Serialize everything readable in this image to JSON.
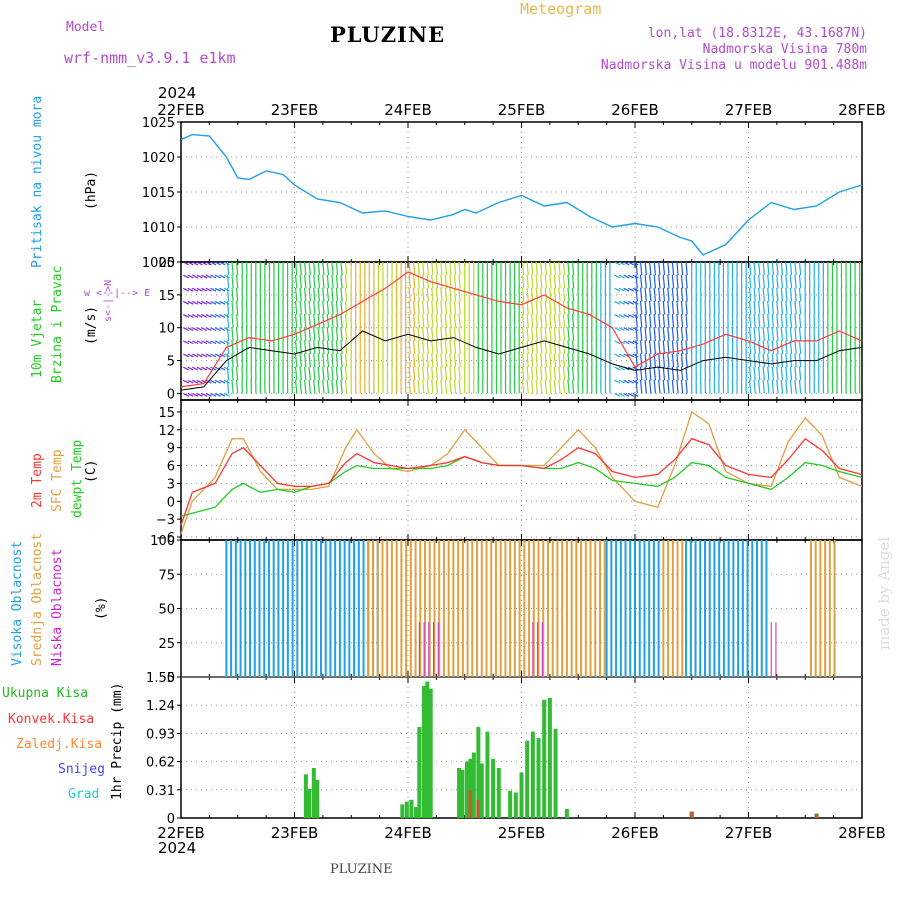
{
  "header": {
    "model_label": "Model",
    "model_name": "wrf-nmm_v3.9.1  e1km",
    "title": "PLUZINE",
    "meteogram": "Meteogram",
    "lonlat": "lon,lat (18.8312E, 43.1687N)",
    "elevation": "Nadmorska Visina 780m",
    "model_elevation": "Nadmorska Visina u modelu 901.488m"
  },
  "footer": {
    "station": "PLUZINE",
    "made_by": "made by Angel"
  },
  "colors": {
    "pressure": "#1ea0e6",
    "wind_speed": "#000000",
    "gust": "#ff3b3b",
    "temp2m": "#ff3333",
    "sfc_temp": "#e0a040",
    "dewpt": "#22cc22",
    "high_cloud": "#1ea0e6",
    "mid_cloud": "#e0a040",
    "low_cloud": "#cc22cc",
    "total_precip": "#33bb33",
    "conv_precip": "#ff3333",
    "frozen": "#ff8833",
    "snow": "#4444ff",
    "graupel": "#22cccc"
  },
  "axis": {
    "year": "2024",
    "dates": [
      "22FEB",
      "23FEB",
      "24FEB",
      "25FEB",
      "26FEB",
      "27FEB",
      "28FEB"
    ]
  },
  "panels": {
    "pressure": {
      "label": "Pritisak na nivou mora",
      "unit": "(hPa)"
    },
    "wind": {
      "label1": "10m Vjetar",
      "label2": "Brzina i Pravac",
      "unit": "(m/s)",
      "compass": "w <--|--> E",
      "compass2": "s<-|->N"
    },
    "temp": {
      "l1": "2m Temp",
      "l2": "SFC Temp",
      "l3": "dewpt Temp",
      "unit": "(C)"
    },
    "cloud": {
      "l1": "Visoka Oblacnost",
      "l2": "Srednja Oblacnost",
      "l3": "Niska Oblacnost",
      "unit": "(%)"
    },
    "precip": {
      "unit": "1hr Precip (mm)",
      "legend": [
        "Ukupna Kisa",
        "Konvek.Kisa",
        "Zaledj.Kisa",
        "Snijeg",
        "Grad"
      ]
    }
  },
  "chart_data": [
    {
      "type": "line",
      "title": "",
      "ylabel": "Pritisak na nivou mora (hPa)",
      "ylim": [
        1005,
        1025
      ],
      "yticks": [
        1005,
        1010,
        1015,
        1020,
        1025
      ],
      "x_days": [
        0,
        0.1,
        0.25,
        0.4,
        0.5,
        0.6,
        0.75,
        0.9,
        1.0,
        1.2,
        1.4,
        1.6,
        1.8,
        2.0,
        2.2,
        2.4,
        2.5,
        2.6,
        2.8,
        3.0,
        3.2,
        3.4,
        3.6,
        3.8,
        4.0,
        4.2,
        4.4,
        4.5,
        4.6,
        4.8,
        5.0,
        5.2,
        5.4,
        5.6,
        5.8,
        6.0
      ],
      "series": [
        {
          "name": "",
          "values": [
            1022.5,
            1023.2,
            1023.0,
            1020.0,
            1017.0,
            1016.8,
            1018.0,
            1017.5,
            1016.0,
            1014.0,
            1013.5,
            1012.0,
            1012.3,
            1011.5,
            1011.0,
            1011.8,
            1012.5,
            1012.0,
            1013.5,
            1014.5,
            1013.0,
            1013.5,
            1011.5,
            1010.0,
            1010.5,
            1010.0,
            1008.5,
            1008.0,
            1006.0,
            1007.5,
            1011.0,
            1013.5,
            1012.5,
            1013.0,
            1015.0,
            1016.0
          ]
        }
      ]
    },
    {
      "type": "line",
      "title": "",
      "ylabel": "10m Vjetar Brzina i Pravac (m/s)",
      "ylim": [
        -1,
        20
      ],
      "yticks": [
        0,
        5,
        10,
        15,
        20
      ],
      "x_days": [
        0,
        0.2,
        0.4,
        0.6,
        0.8,
        1.0,
        1.2,
        1.4,
        1.6,
        1.8,
        2.0,
        2.2,
        2.4,
        2.6,
        2.8,
        3.0,
        3.2,
        3.4,
        3.6,
        3.8,
        4.0,
        4.2,
        4.4,
        4.6,
        4.8,
        5.0,
        5.2,
        5.4,
        5.6,
        5.8,
        6.0
      ],
      "series": [
        {
          "name": "",
          "values": [
            0.5,
            1.0,
            5.0,
            7.0,
            6.5,
            6.0,
            7.0,
            6.5,
            9.5,
            8.0,
            9.0,
            8.0,
            8.5,
            7.0,
            6.0,
            7.0,
            8.0,
            7.0,
            6.0,
            4.5,
            3.5,
            4.0,
            3.5,
            5.0,
            5.5,
            5.0,
            4.5,
            5.0,
            5.0,
            6.5,
            7.0
          ]
        },
        {
          "name": "",
          "values": [
            1.0,
            1.5,
            7.0,
            8.5,
            8.0,
            9.0,
            10.5,
            12.0,
            14.0,
            16.0,
            18.5,
            17.0,
            16.0,
            15.0,
            14.0,
            13.5,
            15.0,
            13.0,
            12.0,
            10.0,
            4.0,
            6.0,
            6.5,
            7.5,
            9.0,
            8.0,
            6.5,
            8.0,
            8.0,
            9.5,
            8.0
          ]
        }
      ],
      "barbs_note": "wind direction arrows colored by speed"
    },
    {
      "type": "line",
      "title": "",
      "ylabel": "(C)",
      "ylim": [
        -6.5,
        17
      ],
      "yticks": [
        -6,
        -3,
        0,
        3,
        6,
        9,
        12,
        15
      ],
      "x_days": [
        0,
        0.1,
        0.3,
        0.45,
        0.55,
        0.7,
        0.85,
        1.0,
        1.15,
        1.3,
        1.45,
        1.55,
        1.7,
        1.85,
        2.0,
        2.2,
        2.35,
        2.5,
        2.65,
        2.8,
        3.0,
        3.2,
        3.35,
        3.5,
        3.65,
        3.8,
        4.0,
        4.2,
        4.35,
        4.5,
        4.65,
        4.8,
        5.0,
        5.2,
        5.35,
        5.5,
        5.65,
        5.8,
        6.0
      ],
      "series": [
        {
          "name": "2m Temp",
          "values": [
            -4,
            1.5,
            3,
            8,
            9,
            6,
            3,
            2.5,
            2.5,
            3,
            6.5,
            8,
            6.5,
            6,
            5.5,
            6,
            6.5,
            7.5,
            6.5,
            6,
            6,
            5.5,
            7,
            9,
            8,
            5,
            4,
            4.5,
            7,
            10.5,
            9.5,
            6,
            4.5,
            4,
            7,
            10.5,
            8.5,
            5.5,
            4.5
          ]
        },
        {
          "name": "SFC Temp",
          "values": [
            -5.5,
            0,
            4,
            10.5,
            10.5,
            5,
            2,
            2,
            2,
            2.5,
            9,
            12,
            8,
            5.5,
            5,
            6,
            8,
            12,
            9,
            6,
            6,
            6,
            9,
            12,
            9,
            4,
            0,
            -1,
            6,
            15,
            13,
            5,
            3,
            2.5,
            10,
            14,
            11,
            4,
            2.5
          ]
        },
        {
          "name": "dewpt Temp",
          "values": [
            -2.5,
            -2,
            -1,
            2,
            3,
            1.5,
            2,
            1.5,
            2.5,
            3,
            5,
            6,
            5.5,
            5.5,
            5.5,
            5.5,
            6,
            7.5,
            6.5,
            6,
            6,
            5.5,
            5.5,
            6.5,
            5.5,
            3.5,
            3,
            2.5,
            4,
            6.5,
            6,
            4,
            3,
            2,
            4,
            6.5,
            6,
            5,
            4
          ]
        }
      ]
    },
    {
      "type": "bar",
      "title": "",
      "ylabel": "(%)",
      "ylim": [
        0,
        100
      ],
      "yticks": [
        0,
        25,
        50,
        75,
        100
      ],
      "series": [
        {
          "name": "Visoka Oblacnost",
          "segments_days": [
            [
              0.4,
              1.75
            ],
            [
              3.75,
              4.25
            ],
            [
              4.45,
              5.2
            ]
          ],
          "value": 100
        },
        {
          "name": "Srednja Oblacnost",
          "segments_days": [
            [
              1.65,
              3.75
            ],
            [
              4.25,
              4.45
            ],
            [
              5.55,
              5.8
            ]
          ],
          "value": 100
        },
        {
          "name": "Niska Oblacnost",
          "segments_days": [
            [
              2.1,
              2.3
            ],
            [
              3.1,
              3.2
            ],
            [
              5.2,
              5.25
            ]
          ],
          "value": 40
        }
      ]
    },
    {
      "type": "bar",
      "title": "",
      "ylabel": "1hr Precip (mm)",
      "ylim": [
        0,
        1.55
      ],
      "yticks": [
        0,
        0.31,
        0.62,
        0.93,
        1.24,
        1.55
      ],
      "x_days": [
        1.1,
        1.13,
        1.17,
        1.2,
        1.95,
        1.99,
        2.03,
        2.07,
        2.1,
        2.14,
        2.17,
        2.2,
        2.45,
        2.48,
        2.52,
        2.55,
        2.58,
        2.62,
        2.65,
        2.7,
        2.75,
        2.8,
        2.9,
        2.95,
        3.0,
        3.05,
        3.1,
        3.15,
        3.2,
        3.25,
        3.3,
        3.4,
        4.5,
        5.6
      ],
      "series": [
        {
          "name": "Ukupna Kisa",
          "values": [
            0.48,
            0.32,
            0.55,
            0.42,
            0.15,
            0.18,
            0.2,
            0.12,
            1.0,
            1.45,
            1.5,
            1.42,
            0.55,
            0.53,
            0.62,
            0.65,
            0.72,
            1.0,
            0.6,
            0.95,
            0.65,
            0.55,
            0.3,
            0.28,
            0.5,
            0.85,
            0.95,
            0.88,
            1.3,
            1.32,
            0.98,
            0.1,
            0.07,
            0.05
          ]
        },
        {
          "name": "Konvek.Kisa",
          "values": [
            0,
            0,
            0,
            0,
            0,
            0,
            0,
            0,
            0,
            0,
            0,
            0,
            0,
            0,
            0,
            0.3,
            0,
            0.2,
            0,
            0,
            0,
            0,
            0,
            0,
            0,
            0,
            0,
            0,
            0,
            0,
            0,
            0,
            0.07,
            0.04
          ]
        }
      ]
    }
  ]
}
